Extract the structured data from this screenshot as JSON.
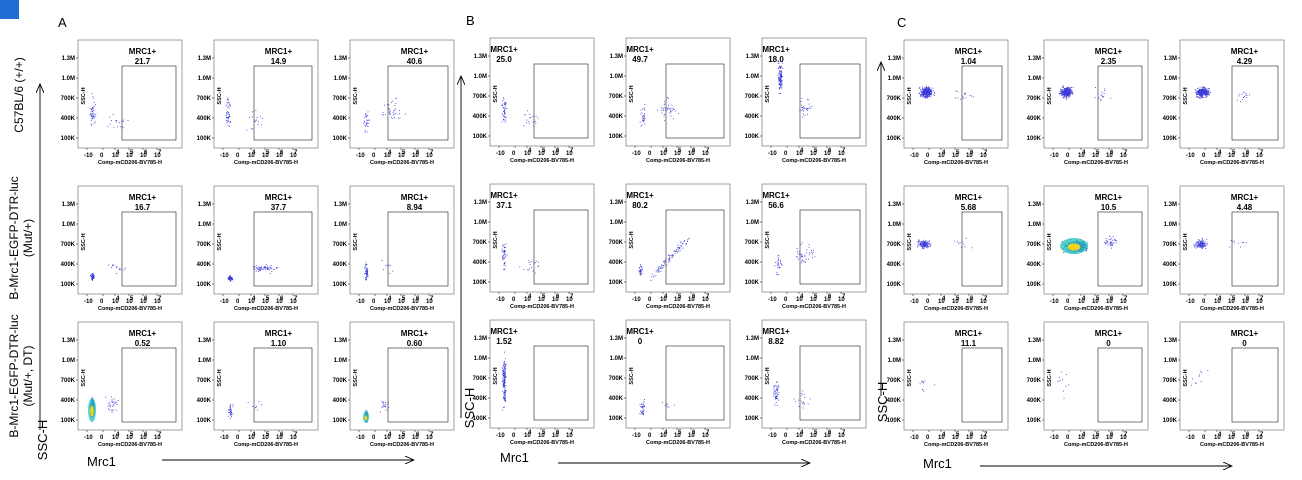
{
  "panel_letters": [
    "A",
    "B",
    "C"
  ],
  "row_labels": [
    [
      "C57BL/6 (+/+)"
    ],
    [
      "B-Mrc1-EGFP-DTR-luc",
      "(Mut/+)"
    ],
    [
      "B-Mrc1-EGFP-DTR-luc",
      "(Mut/+, DT)"
    ]
  ],
  "big_axis": {
    "y": "SSC-H",
    "x": "Mrc1"
  },
  "colors": {
    "dots": "#3b3bd6",
    "dense_mid": "#21c4b8",
    "dense_core": "#f2d21a",
    "corner_mark": "#1f6fd6"
  },
  "chart_data": {
    "type": "scatter",
    "subtype": "flow-cytometry-dot-plot-grid",
    "xlabel": "Comp-mCD206-BV785-H",
    "ylabel": "SSC-H",
    "y_ticks": [
      "100K",
      "400K",
      "700K",
      "1.0M",
      "1.3M"
    ],
    "x_ticks": [
      "-10",
      "0",
      "10",
      "4",
      "10",
      "5",
      "10",
      "6",
      "10",
      "7"
    ],
    "gate_name": "MRC1+",
    "panels": [
      {
        "letter": "A",
        "rows": [
          [
            {
              "gate_value": "21.7",
              "pattern": "sparse_left"
            },
            {
              "gate_value": "14.9",
              "pattern": "sparse_left"
            },
            {
              "gate_value": "40.6",
              "pattern": "sparse_mid"
            }
          ],
          [
            {
              "gate_value": "16.7",
              "pattern": "blob_low"
            },
            {
              "gate_value": "37.7",
              "pattern": "blob_low_tail"
            },
            {
              "gate_value": "8.94",
              "pattern": "narrow_low"
            }
          ],
          [
            {
              "gate_value": "0.52",
              "pattern": "dense_low"
            },
            {
              "gate_value": "1.10",
              "pattern": "sparse_low"
            },
            {
              "gate_value": "0.60",
              "pattern": "dense_small"
            }
          ]
        ]
      },
      {
        "letter": "B",
        "rows": [
          [
            {
              "gate_value": "25.0",
              "pattern": "sparse_left"
            },
            {
              "gate_value": "49.7",
              "pattern": "sparse_mid"
            },
            {
              "gate_value": "18.0",
              "pattern": "column_top"
            }
          ],
          [
            {
              "gate_value": "37.1",
              "pattern": "sparse_left"
            },
            {
              "gate_value": "80.2",
              "pattern": "diag_right"
            },
            {
              "gate_value": "56.6",
              "pattern": "sparse_mid"
            }
          ],
          [
            {
              "gate_value": "1.52",
              "pattern": "column_full"
            },
            {
              "gate_value": "0",
              "pattern": "sparse_low"
            },
            {
              "gate_value": "8.82",
              "pattern": "sparse_left"
            }
          ]
        ]
      },
      {
        "letter": "C",
        "rows": [
          [
            {
              "gate_value": "1.04",
              "pattern": "cloud_mid"
            },
            {
              "gate_value": "2.35",
              "pattern": "cloud_mid"
            },
            {
              "gate_value": "4.29",
              "pattern": "cloud_mid"
            }
          ],
          [
            {
              "gate_value": "5.68",
              "pattern": "cloud_mid_small"
            },
            {
              "gate_value": "10.5",
              "pattern": "cloud_dense"
            },
            {
              "gate_value": "4.48",
              "pattern": "cloud_mid_small"
            }
          ],
          [
            {
              "gate_value": "11.1",
              "pattern": "empty_few"
            },
            {
              "gate_value": "0",
              "pattern": "empty_few"
            },
            {
              "gate_value": "0",
              "pattern": "empty_few"
            }
          ]
        ]
      }
    ]
  }
}
